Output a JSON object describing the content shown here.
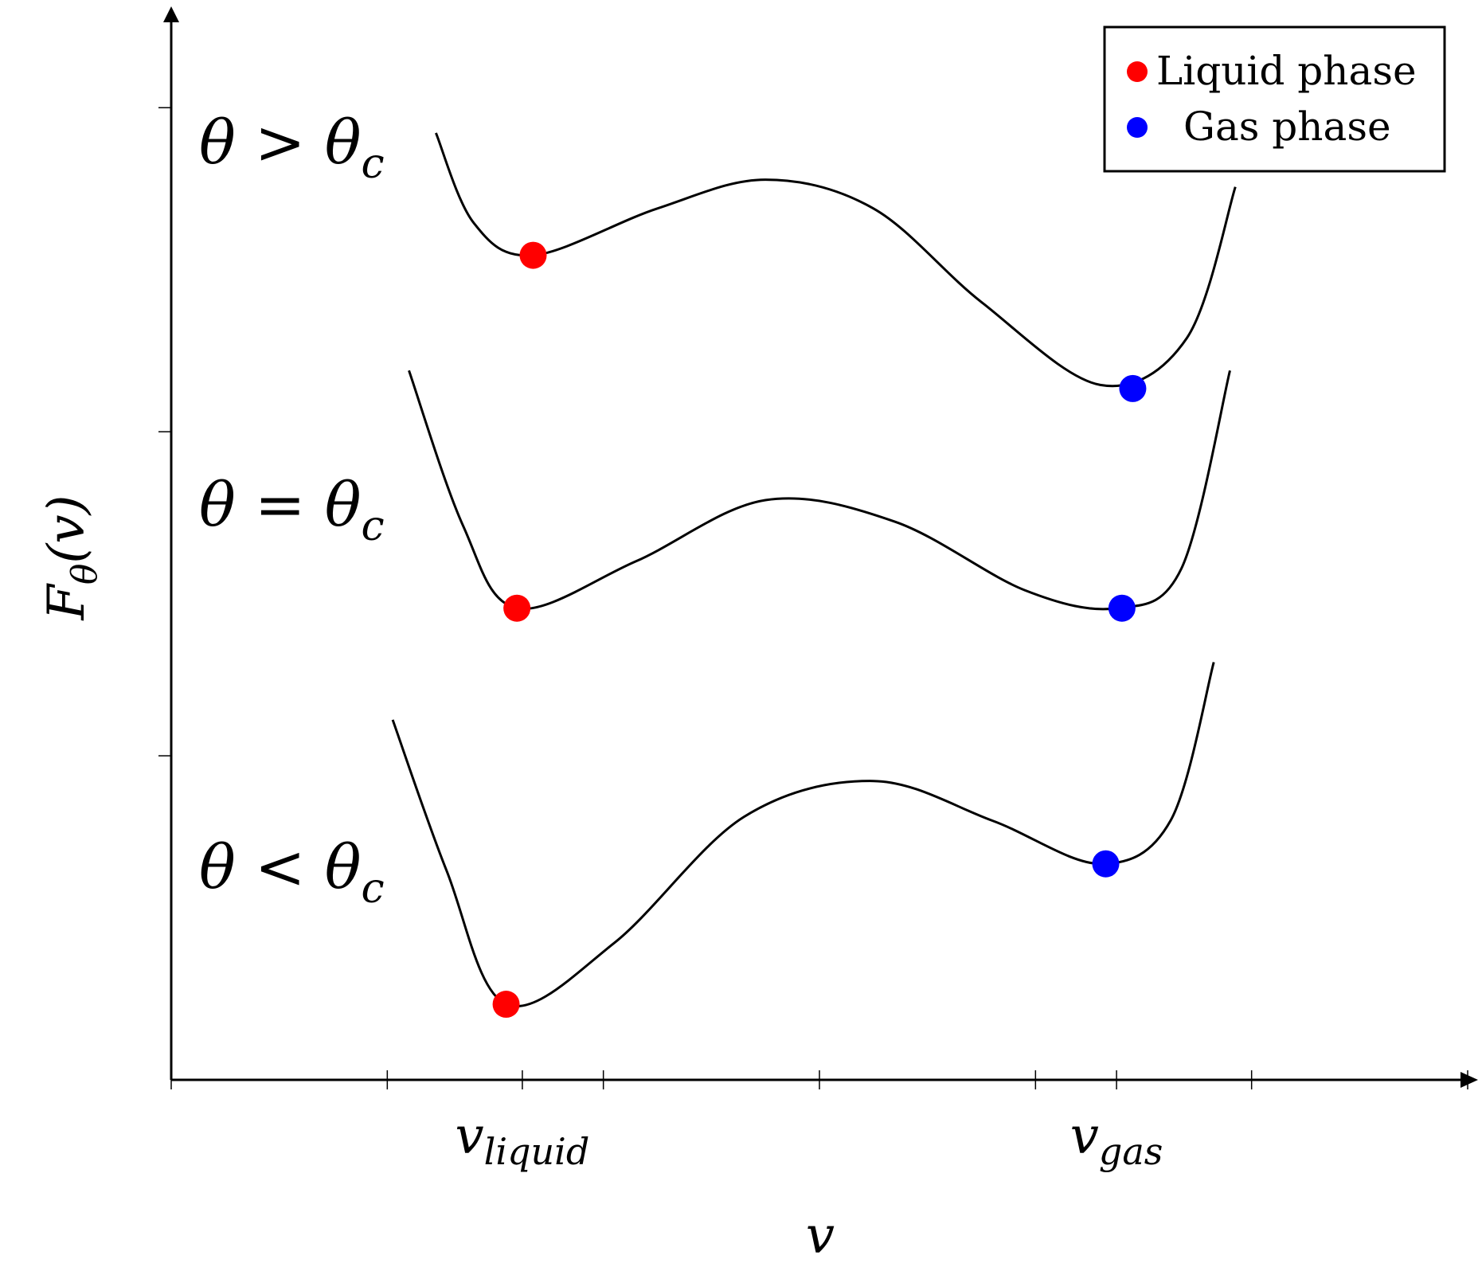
{
  "chart_data": {
    "type": "line",
    "title": "",
    "xlabel": "v",
    "ylabel": {
      "base": "F",
      "sub": "θ",
      "suffix": "(v)"
    },
    "x_range": [
      0,
      12
    ],
    "y_range": [
      0,
      14
    ],
    "x_tick_labels": [
      {
        "base": "v",
        "sub": "liquid",
        "color": "#ff0000",
        "x": 3.25
      },
      {
        "base": "v",
        "sub": "gas",
        "color": "#0000ff",
        "x": 8.75
      }
    ],
    "series": [
      {
        "name": "",
        "label": {
          "prefix": "θ > θ",
          "sub": "c"
        },
        "points": [
          [
            2.45,
            13.15
          ],
          [
            2.8,
            11.9
          ],
          [
            3.35,
            11.45
          ],
          [
            4.5,
            12.1
          ],
          [
            5.5,
            12.5
          ],
          [
            6.5,
            12.1
          ],
          [
            7.5,
            10.8
          ],
          [
            8.6,
            9.65
          ],
          [
            9.4,
            10.3
          ],
          [
            9.85,
            12.4
          ]
        ],
        "minima": [
          {
            "phase": "liquid",
            "x": 3.35,
            "y": 11.45
          },
          {
            "phase": "gas",
            "x": 8.9,
            "y": 9.6
          }
        ]
      },
      {
        "name": "",
        "label": {
          "prefix": "θ = θ",
          "sub": "c"
        },
        "points": [
          [
            2.2,
            9.85
          ],
          [
            2.7,
            7.7
          ],
          [
            3.2,
            6.55
          ],
          [
            4.3,
            7.2
          ],
          [
            5.5,
            8.05
          ],
          [
            6.7,
            7.75
          ],
          [
            7.9,
            6.8
          ],
          [
            8.75,
            6.55
          ],
          [
            9.35,
            7.1
          ],
          [
            9.8,
            9.85
          ]
        ],
        "minima": [
          {
            "phase": "liquid",
            "x": 3.2,
            "y": 6.55
          },
          {
            "phase": "gas",
            "x": 8.8,
            "y": 6.55
          }
        ]
      },
      {
        "name": "",
        "label": {
          "prefix": "θ < θ",
          "sub": "c"
        },
        "points": [
          [
            2.05,
            5.0
          ],
          [
            2.55,
            2.9
          ],
          [
            3.1,
            1.05
          ],
          [
            4.1,
            1.9
          ],
          [
            5.3,
            3.65
          ],
          [
            6.5,
            4.15
          ],
          [
            7.6,
            3.6
          ],
          [
            8.6,
            3.0
          ],
          [
            9.25,
            3.6
          ],
          [
            9.65,
            5.8
          ]
        ],
        "minima": [
          {
            "phase": "liquid",
            "x": 3.1,
            "y": 1.05
          },
          {
            "phase": "gas",
            "x": 8.65,
            "y": 3.0
          }
        ]
      }
    ],
    "legend": {
      "placement": "top-right",
      "entries": [
        {
          "label": "Liquid phase",
          "color": "#ff0000"
        },
        {
          "label": "Gas phase",
          "color": "#0000ff"
        }
      ]
    },
    "grid": false
  }
}
